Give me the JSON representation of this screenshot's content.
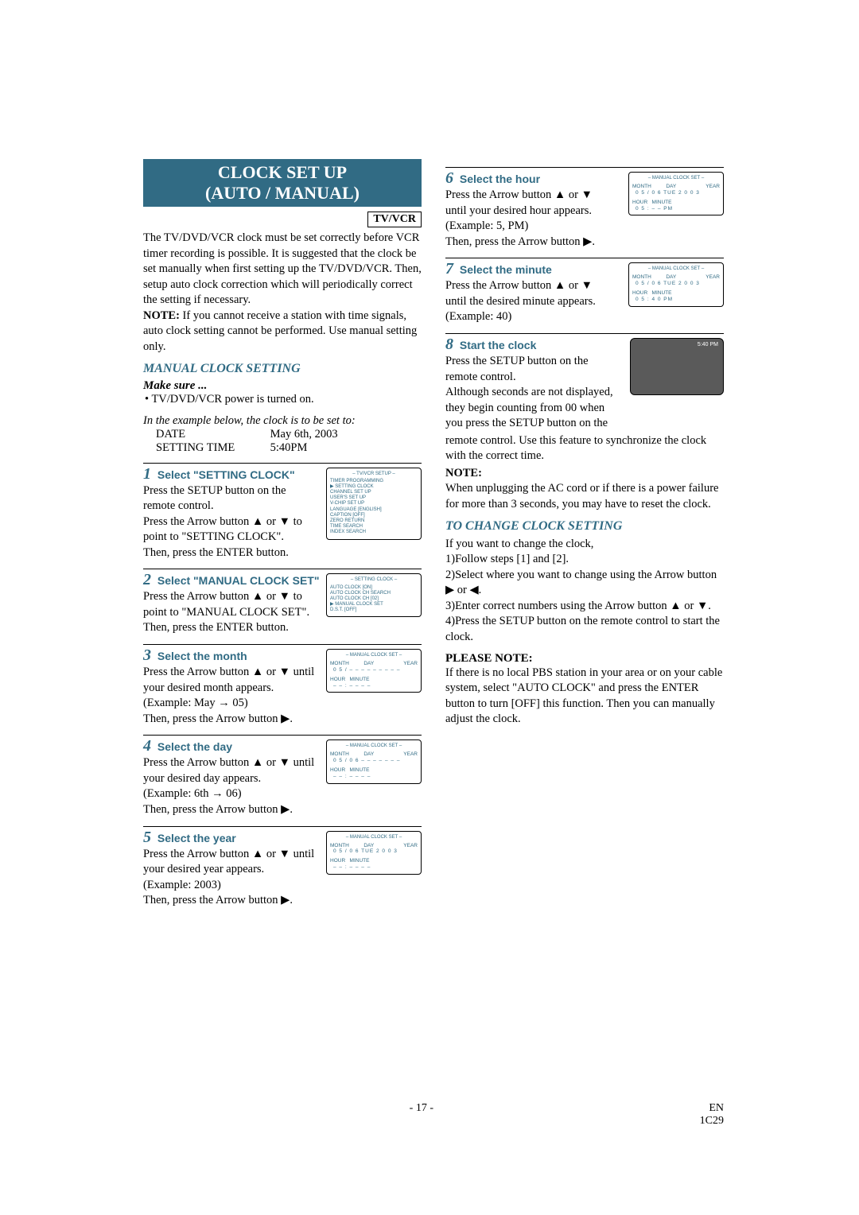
{
  "title_line1": "CLOCK SET UP",
  "title_line2": "(AUTO / MANUAL)",
  "tvvcr": "TV/VCR",
  "intro": "The TV/DVD/VCR clock must be set correctly before VCR timer recording is possible. It is suggested that the clock be set manually when first setting up the TV/DVD/VCR. Then, setup auto clock correction which will periodically correct the setting if necessary.",
  "note_label": "NOTE:",
  "note_text": " If you cannot receive a station with time signals, auto clock setting cannot be performed. Use manual setting only.",
  "manual_heading": "MANUAL CLOCK SETTING",
  "make_sure": "Make sure ...",
  "bullet1": "• TV/DVD/VCR power is turned on.",
  "example_intro": "In the example below, the clock is to be set to:",
  "date_label": "DATE",
  "date_value": "May 6th, 2003",
  "time_label": "SETTING TIME",
  "time_value": "5:40PM",
  "steps_left": [
    {
      "num": "1",
      "head": "Select \"SETTING CLOCK\"",
      "body": "Press the SETUP button on the remote control.\nPress the Arrow button ▲ or ▼ to point to \"SETTING CLOCK\".\nThen, press the ENTER button.",
      "osd_title": "– TV/VCR SETUP –",
      "osd_lines": [
        "TIMER PROGRAMMING",
        "▶ SETTING CLOCK",
        "   CHANNEL SET UP",
        "   USER'S SET UP",
        "   V-CHIP SET UP",
        "   LANGUAGE   [ENGLISH]",
        "   CAPTION   [OFF]",
        "   ZERO RETURN",
        "   TIME SEARCH",
        "   INDEX SEARCH"
      ]
    },
    {
      "num": "2",
      "head": "Select \"MANUAL CLOCK SET\"",
      "body": "Press the Arrow button ▲ or ▼ to point to \"MANUAL CLOCK SET\".\nThen, press the ENTER button.",
      "osd_title": "– SETTING CLOCK –",
      "osd_lines": [
        "AUTO CLOCK              [ON]",
        "AUTO CLOCK CH SEARCH",
        "AUTO CLOCK CH         [02]",
        "▶ MANUAL CLOCK SET",
        "D.S.T.                      [OFF]"
      ]
    },
    {
      "num": "3",
      "head": "Select the month",
      "body": "Press the Arrow button ▲ or ▼ until your desired month appears.\n(Example: May → 05)\nThen, press the Arrow button ▶.",
      "osd_title": "– MANUAL CLOCK SET –",
      "monthday": true,
      "month": "0 5",
      "day": "– –",
      "dow": "– – –",
      "year": "– – – –",
      "hour": "– –",
      "min": "– –",
      "ampm": "– –"
    },
    {
      "num": "4",
      "head": "Select the day",
      "body": "Press the Arrow button ▲ or ▼ until your desired day appears.\n(Example: 6th → 06)\nThen, press the Arrow button ▶.",
      "osd_title": "– MANUAL CLOCK SET –",
      "monthday": true,
      "month": "0 5",
      "day": "0 6",
      "dow": "– – –",
      "year": "– – – –",
      "hour": "– –",
      "min": "– –",
      "ampm": "– –"
    },
    {
      "num": "5",
      "head": "Select the year",
      "body": "Press the Arrow button ▲ or ▼ until your desired year appears.\n(Example: 2003)\nThen, press the Arrow button ▶.",
      "osd_title": "– MANUAL CLOCK SET –",
      "monthday": true,
      "month": "0 5",
      "day": "0 6",
      "dow": "TUE",
      "year": "2 0 0 3",
      "hour": "– –",
      "min": "– –",
      "ampm": "– –"
    }
  ],
  "steps_right": [
    {
      "num": "6",
      "head": "Select the hour",
      "body": "Press the Arrow button ▲ or ▼ until your desired hour appears.\n(Example: 5, PM)\nThen, press the Arrow button ▶.",
      "osd_title": "– MANUAL CLOCK SET –",
      "monthday": true,
      "month": "0 5",
      "day": "0 6",
      "dow": "TUE",
      "year": "2 0 0 3",
      "hour": "0 5",
      "min": "– –",
      "ampm": "PM"
    },
    {
      "num": "7",
      "head": "Select the minute",
      "body": "Press the Arrow button ▲ or ▼ until the desired minute appears.\n(Example: 40)",
      "osd_title": "– MANUAL CLOCK SET –",
      "monthday": true,
      "month": "0 5",
      "day": "0 6",
      "dow": "TUE",
      "year": "2 0 0 3",
      "hour": "0 5",
      "min": "4 0",
      "ampm": "PM"
    },
    {
      "num": "8",
      "head": "Start the clock",
      "body": "Press the SETUP button on the remote control.\nAlthough seconds are not displayed, they begin counting from 00 when you press the SETUP button on the",
      "tv": true,
      "tv_text": "5:40 PM"
    }
  ],
  "after8": "remote control. Use this feature to synchronize the clock with the correct time.",
  "note2_label": "NOTE:",
  "note2_text": "When unplugging the AC cord or if there is a power failure for more than 3 seconds, you may have to reset the clock.",
  "change_heading": "TO CHANGE CLOCK SETTING",
  "change_intro": "If you want to change the clock,",
  "change_1": "1)Follow steps [1] and [2].",
  "change_2": "2)Select where you want to change using the Arrow button ▶ or ◀.",
  "change_3": "3)Enter correct numbers using the Arrow button ▲ or ▼.",
  "change_4": "4)Press the SETUP button on the remote control to start the clock.",
  "please_note": "PLEASE NOTE:",
  "please_note_text": "If there is no local PBS station in your area or on your cable system, select \"AUTO CLOCK\" and press the ENTER button to turn [OFF] this function. Then you can manually adjust the clock.",
  "footer_page": "- 17 -",
  "footer_en": "EN",
  "footer_code": "1C29"
}
